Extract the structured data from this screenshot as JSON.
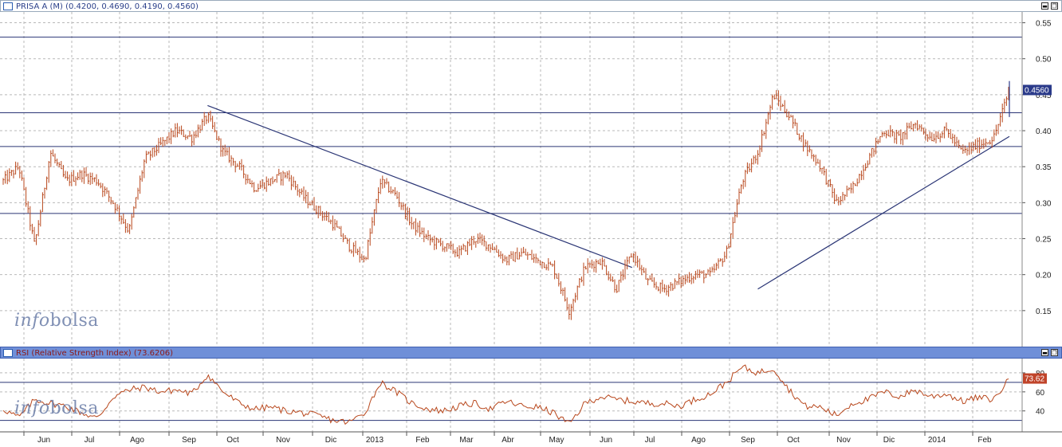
{
  "price_panel": {
    "header": "PRISA A (M) (0.4200, 0.4690, 0.4190, 0.4560)",
    "last_value_label": "0.4560"
  },
  "rsi_panel": {
    "header": "RSI (Relative Strength Index) (73.6206)",
    "last_value_label": "73.62"
  },
  "watermark": {
    "part1": "info",
    "part2": "bolsa"
  },
  "window_buttons": {
    "minimize": "",
    "restore": ""
  },
  "colors": {
    "bars": "#b8471c",
    "rsi_line": "#b8471c",
    "trend_lines": "#2a3575",
    "grid": "#b9b9b9",
    "value_badge_price": "#2a3a8a",
    "value_badge_rsi": "#c0442a"
  },
  "x_axis": {
    "labels": [
      "Jun",
      "Jul",
      "Ago",
      "Sep",
      "Oct",
      "Nov",
      "Dic",
      "2013",
      "Feb",
      "Mar",
      "Abr",
      "May",
      "Jun",
      "Jul",
      "Ago",
      "Sep",
      "Oct",
      "Nov",
      "Dic",
      "2014",
      "Feb"
    ]
  },
  "chart_data": [
    {
      "type": "bar",
      "subtype": "ohlc",
      "series_name": "PRISA A (M)",
      "last": {
        "open": 0.42,
        "high": 0.469,
        "low": 0.419,
        "close": 0.456
      },
      "ylim": [
        0.1,
        0.565
      ],
      "yticks": [
        "0.55",
        "0.50",
        "0.45",
        "0.40",
        "0.35",
        "0.30",
        "0.25",
        "0.20",
        "0.15"
      ],
      "horizontal_levels": [
        0.53,
        0.425,
        0.378,
        0.285
      ],
      "weekly_close": [
        0.33,
        0.35,
        0.24,
        0.37,
        0.33,
        0.34,
        0.33,
        0.3,
        0.26,
        0.36,
        0.38,
        0.4,
        0.39,
        0.42,
        0.37,
        0.35,
        0.32,
        0.33,
        0.34,
        0.31,
        0.29,
        0.27,
        0.24,
        0.22,
        0.33,
        0.31,
        0.27,
        0.25,
        0.24,
        0.23,
        0.25,
        0.24,
        0.22,
        0.23,
        0.22,
        0.21,
        0.15,
        0.21,
        0.22,
        0.18,
        0.23,
        0.19,
        0.18,
        0.19,
        0.2,
        0.2,
        0.23,
        0.33,
        0.37,
        0.45,
        0.42,
        0.38,
        0.35,
        0.3,
        0.32,
        0.36,
        0.4,
        0.39,
        0.41,
        0.39,
        0.4,
        0.37,
        0.38,
        0.39,
        0.456
      ],
      "trend_lines": [
        {
          "from": {
            "week": 13,
            "price": 0.435
          },
          "to": {
            "week": 40,
            "price": 0.21
          }
        },
        {
          "from": {
            "week": 48,
            "price": 0.18
          },
          "to": {
            "week": 64,
            "price": 0.392
          }
        }
      ]
    },
    {
      "type": "line",
      "series_name": "RSI (Relative Strength Index)",
      "last": 73.6206,
      "ylim": [
        18,
        95
      ],
      "yticks": [
        "80",
        "60",
        "40"
      ],
      "horizontal_levels": [
        70,
        30
      ],
      "weekly_values": [
        42,
        33,
        52,
        48,
        45,
        38,
        32,
        55,
        62,
        65,
        60,
        62,
        58,
        78,
        60,
        48,
        42,
        44,
        40,
        38,
        35,
        30,
        28,
        38,
        70,
        60,
        48,
        42,
        40,
        45,
        48,
        42,
        50,
        45,
        44,
        38,
        26,
        48,
        55,
        52,
        50,
        48,
        48,
        45,
        52,
        58,
        70,
        86,
        80,
        85,
        62,
        45,
        44,
        35,
        48,
        52,
        60,
        55,
        62,
        55,
        58,
        50,
        54,
        52,
        73.62
      ]
    }
  ]
}
